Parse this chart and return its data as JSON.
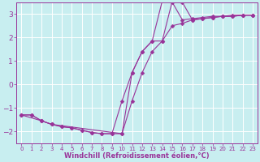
{
  "background_color": "#c8eef0",
  "line_color": "#993399",
  "grid_color": "#ffffff",
  "xlabel": "Windchill (Refroidissement éolien,°C)",
  "xlabel_color": "#993399",
  "tick_color": "#993399",
  "xlim": [
    -0.5,
    23.5
  ],
  "ylim": [
    -2.5,
    3.5
  ],
  "yticks": [
    -2,
    -1,
    0,
    1,
    2,
    3
  ],
  "xticks": [
    0,
    1,
    2,
    3,
    4,
    5,
    6,
    7,
    8,
    9,
    10,
    11,
    12,
    13,
    14,
    15,
    16,
    17,
    18,
    19,
    20,
    21,
    22,
    23
  ],
  "line1_x": [
    0,
    1,
    2,
    3,
    4,
    5,
    6,
    7,
    8,
    9,
    10,
    11,
    12,
    13,
    14,
    15,
    16,
    17,
    18,
    19,
    20,
    21,
    22,
    23
  ],
  "line1_y": [
    -1.3,
    -1.3,
    -1.55,
    -1.7,
    -1.8,
    -1.85,
    -1.95,
    -2.05,
    -2.1,
    -2.1,
    -2.1,
    -0.7,
    0.5,
    1.4,
    1.85,
    3.55,
    3.5,
    2.75,
    2.8,
    2.85,
    2.9,
    2.9,
    2.95,
    2.95
  ],
  "line2_x": [
    0,
    1,
    2,
    3,
    4,
    5,
    6,
    7,
    8,
    9,
    10,
    11,
    12,
    13,
    14,
    15,
    16,
    17,
    18,
    19,
    20,
    21,
    22,
    23
  ],
  "line2_y": [
    -1.3,
    -1.3,
    -1.55,
    -1.7,
    -1.8,
    -1.85,
    -1.95,
    -2.05,
    -2.1,
    -2.1,
    -0.7,
    0.5,
    1.4,
    1.85,
    1.85,
    2.5,
    2.6,
    2.75,
    2.8,
    2.85,
    2.9,
    2.9,
    2.95,
    2.95
  ],
  "line3_x": [
    0,
    2,
    3,
    10,
    11,
    12,
    13,
    14,
    15,
    16,
    17,
    18,
    19,
    20,
    21,
    22,
    23
  ],
  "line3_y": [
    -1.3,
    -1.55,
    -1.7,
    -2.1,
    0.5,
    1.4,
    1.85,
    3.55,
    3.5,
    2.75,
    2.8,
    2.85,
    2.9,
    2.9,
    2.95,
    2.95,
    2.95
  ]
}
